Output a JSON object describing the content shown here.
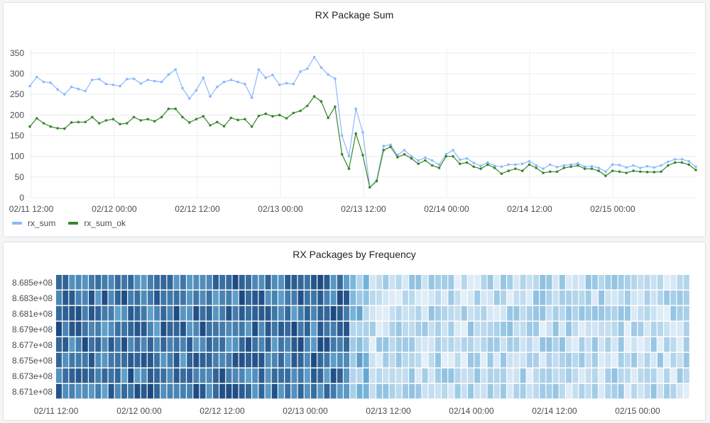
{
  "colors": {
    "rx_sum": "#8ab8ff",
    "rx_sum_ok": "#37872d",
    "grid": "#ececec",
    "heat_low": "#f2f7fd",
    "heat_high": "#08306b"
  },
  "chart_data": [
    {
      "type": "line",
      "title": "RX Package Sum",
      "xlabel": "",
      "ylabel": "",
      "x_ticks": [
        "02/11 12:00",
        "02/12 00:00",
        "02/12 12:00",
        "02/13 00:00",
        "02/13 12:00",
        "02/14 00:00",
        "02/14 12:00",
        "02/15 00:00"
      ],
      "y_ticks": [
        "0",
        "50",
        "100",
        "150",
        "200",
        "250",
        "300",
        "350"
      ],
      "ylim": [
        0,
        360
      ],
      "legend_position": "bottom-left",
      "series": [
        {
          "name": "rx_sum",
          "values": [
            270,
            292,
            280,
            278,
            262,
            250,
            268,
            263,
            258,
            285,
            287,
            275,
            273,
            270,
            287,
            288,
            276,
            285,
            282,
            280,
            298,
            310,
            265,
            240,
            260,
            290,
            245,
            268,
            280,
            285,
            280,
            275,
            242,
            310,
            290,
            297,
            273,
            277,
            275,
            305,
            312,
            340,
            315,
            298,
            288,
            150,
            100,
            215,
            158,
            25,
            42,
            125,
            128,
            103,
            115,
            100,
            90,
            97,
            90,
            80,
            105,
            115,
            92,
            95,
            84,
            77,
            85,
            77,
            75,
            80,
            80,
            82,
            88,
            78,
            70,
            80,
            74,
            78,
            80,
            83,
            75,
            76,
            72,
            63,
            80,
            79,
            73,
            78,
            72,
            76,
            73,
            78,
            87,
            93,
            93,
            88,
            75
          ]
        },
        {
          "name": "rx_sum_ok",
          "values": [
            172,
            192,
            180,
            172,
            168,
            167,
            182,
            183,
            183,
            195,
            180,
            187,
            190,
            178,
            180,
            195,
            187,
            190,
            185,
            195,
            215,
            215,
            195,
            182,
            190,
            197,
            175,
            183,
            173,
            193,
            188,
            190,
            172,
            198,
            203,
            197,
            200,
            192,
            205,
            210,
            222,
            245,
            233,
            193,
            220,
            105,
            70,
            155,
            103,
            25,
            40,
            115,
            123,
            98,
            105,
            95,
            82,
            90,
            78,
            72,
            100,
            100,
            82,
            85,
            75,
            70,
            80,
            72,
            58,
            65,
            70,
            65,
            80,
            72,
            60,
            63,
            63,
            72,
            75,
            78,
            70,
            70,
            65,
            53,
            65,
            63,
            60,
            65,
            63,
            62,
            62,
            63,
            78,
            85,
            85,
            80,
            67
          ]
        }
      ]
    },
    {
      "type": "heatmap",
      "title": "RX Packages by Frequency",
      "xlabel": "",
      "ylabel": "",
      "x_ticks": [
        "02/11 12:00",
        "02/12 00:00",
        "02/12 12:00",
        "02/13 00:00",
        "02/13 12:00",
        "02/14 00:00",
        "02/14 12:00",
        "02/15 00:00"
      ],
      "y_ticks": [
        "8.685e+08",
        "8.683e+08",
        "8.681e+08",
        "8.679e+08",
        "8.677e+08",
        "8.675e+08",
        "8.673e+08",
        "8.671e+08"
      ],
      "n_columns": 97,
      "intensity_note": "high intensity (dark blue) before 02/13 12:00, low intensity (pale blue) after"
    }
  ]
}
